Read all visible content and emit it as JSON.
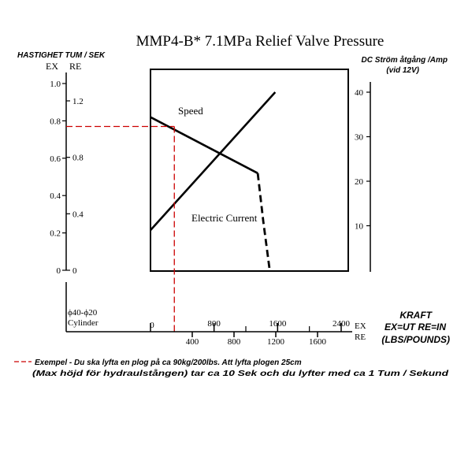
{
  "title": "MMP4-B* 7.1MPa Relief Valve Pressure",
  "left_axis_title": "HASTIGHET TUM / SEK",
  "right_axis_title_line1": "DC Ström åtgång /Amp",
  "right_axis_title_line2": "(vid 12V)",
  "left_axis_ex_label": "EX",
  "left_axis_re_label": "RE",
  "cylinder_line1": "ϕ40-ϕ20",
  "cylinder_line2": "Cylinder",
  "bottom_ex_label": "EX",
  "bottom_re_label": "RE",
  "kraft_line1": "KRAFT",
  "kraft_line2": "EX=UT RE=IN",
  "kraft_line3": "(LBS/POUNDS)",
  "example_line1": "Exempel - Du ska lyfta en plog på ca 90kg/200lbs. Att lyfta plogen 25cm",
  "example_line2": "(Max höjd för hydraulstången) tar ca 10 Sek och du lyfter med ca 1 Tum / Sekund",
  "chart_data": {
    "type": "line",
    "title": "MMP4-B* 7.1MPa Relief Valve Pressure",
    "x_ex_ticks": [
      "0",
      "800",
      "1600",
      "2400"
    ],
    "x_re_ticks": [
      "400",
      "800",
      "1200",
      "1600"
    ],
    "y_ex_ticks": [
      "0",
      "0.2",
      "0.4",
      "0.6",
      "0.8",
      "1.0"
    ],
    "y_re_ticks": [
      "0",
      "0.4",
      "0.8",
      "1.2"
    ],
    "y_right_ticks": [
      "10",
      "20",
      "30",
      "40"
    ],
    "xlim_ex": [
      0,
      2400
    ],
    "ylim_ex": [
      0,
      1.0
    ],
    "ylim_right": [
      0,
      40
    ],
    "series": [
      {
        "name": "Speed",
        "axis": "left_ex",
        "style": "solid",
        "points": [
          [
            0,
            0.82
          ],
          [
            1350,
            0.52
          ]
        ]
      },
      {
        "name": "Speed",
        "axis": "left_ex",
        "style": "dashed",
        "points": [
          [
            1350,
            0.52
          ],
          [
            1420,
            0.26
          ],
          [
            1500,
            0.0
          ]
        ]
      },
      {
        "name": "Electric Current",
        "axis": "right",
        "style": "solid",
        "points": [
          [
            0,
            9
          ],
          [
            1570,
            40
          ]
        ]
      }
    ],
    "example_guide": {
      "x_ex": 300,
      "y_ex": 0.77
    }
  }
}
